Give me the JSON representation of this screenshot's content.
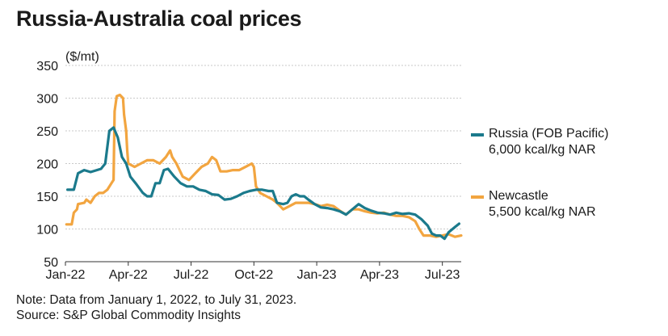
{
  "title": "Russia-Australia coal prices",
  "note": "Note: Data from January 1, 2022, to July 31, 2023.",
  "source": "Source: S&P Global Commodity Insights",
  "colors": {
    "russia": "#1b7a8c",
    "newcastle": "#f2a540",
    "grid": "#c9c9c9",
    "axis": "#333333"
  },
  "chart_data": {
    "type": "line",
    "title": "Russia-Australia coal prices",
    "ylabel": "($/mt)",
    "ylim": [
      50,
      350
    ],
    "yticks": [
      50,
      100,
      150,
      200,
      250,
      300,
      350
    ],
    "xlim": [
      0,
      18.9
    ],
    "xticks": [
      {
        "label": "Jan-22",
        "pos": 0
      },
      {
        "label": "Apr-22",
        "pos": 3
      },
      {
        "label": "Jul-22",
        "pos": 6
      },
      {
        "label": "Oct-22",
        "pos": 9
      },
      {
        "label": "Jan-23",
        "pos": 12
      },
      {
        "label": "Apr-23",
        "pos": 15
      },
      {
        "label": "Jul-23",
        "pos": 18
      }
    ],
    "series": [
      {
        "name": "Russia (FOB Pacific)",
        "name_line2": "6,000 kcal/kg NAR",
        "color": "#1b7a8c",
        "points": [
          [
            0.1,
            160
          ],
          [
            0.4,
            160
          ],
          [
            0.6,
            185
          ],
          [
            0.9,
            190
          ],
          [
            1.2,
            187
          ],
          [
            1.5,
            190
          ],
          [
            1.7,
            192
          ],
          [
            1.9,
            200
          ],
          [
            2.1,
            250
          ],
          [
            2.3,
            255
          ],
          [
            2.5,
            240
          ],
          [
            2.7,
            210
          ],
          [
            2.9,
            200
          ],
          [
            3.1,
            180
          ],
          [
            3.4,
            168
          ],
          [
            3.7,
            155
          ],
          [
            3.9,
            150
          ],
          [
            4.1,
            150
          ],
          [
            4.3,
            170
          ],
          [
            4.5,
            170
          ],
          [
            4.7,
            190
          ],
          [
            4.9,
            192
          ],
          [
            5.2,
            180
          ],
          [
            5.5,
            170
          ],
          [
            5.8,
            165
          ],
          [
            6.1,
            165
          ],
          [
            6.4,
            160
          ],
          [
            6.7,
            158
          ],
          [
            7.0,
            153
          ],
          [
            7.3,
            152
          ],
          [
            7.6,
            145
          ],
          [
            7.9,
            146
          ],
          [
            8.2,
            150
          ],
          [
            8.5,
            155
          ],
          [
            8.8,
            158
          ],
          [
            9.1,
            160
          ],
          [
            9.4,
            160
          ],
          [
            9.7,
            158
          ],
          [
            9.9,
            158
          ],
          [
            10.1,
            140
          ],
          [
            10.4,
            138
          ],
          [
            10.6,
            140
          ],
          [
            10.8,
            150
          ],
          [
            11.0,
            153
          ],
          [
            11.2,
            150
          ],
          [
            11.4,
            150
          ],
          [
            11.6,
            145
          ],
          [
            11.9,
            138
          ],
          [
            12.2,
            133
          ],
          [
            12.5,
            132
          ],
          [
            12.8,
            130
          ],
          [
            13.1,
            127
          ],
          [
            13.4,
            122
          ],
          [
            13.7,
            130
          ],
          [
            14.0,
            138
          ],
          [
            14.3,
            132
          ],
          [
            14.6,
            128
          ],
          [
            14.9,
            125
          ],
          [
            15.2,
            124
          ],
          [
            15.5,
            122
          ],
          [
            15.8,
            125
          ],
          [
            16.1,
            123
          ],
          [
            16.4,
            124
          ],
          [
            16.7,
            122
          ],
          [
            17.0,
            115
          ],
          [
            17.3,
            105
          ],
          [
            17.5,
            93
          ],
          [
            17.7,
            90
          ],
          [
            17.9,
            90
          ],
          [
            18.1,
            85
          ],
          [
            18.3,
            95
          ],
          [
            18.6,
            103
          ],
          [
            18.8,
            108
          ]
        ]
      },
      {
        "name": "Newcastle",
        "name_line2": "5,500 kcal/kg NAR",
        "color": "#f2a540",
        "points": [
          [
            0.05,
            107
          ],
          [
            0.3,
            107
          ],
          [
            0.4,
            125
          ],
          [
            0.55,
            130
          ],
          [
            0.6,
            138
          ],
          [
            0.9,
            140
          ],
          [
            1.0,
            145
          ],
          [
            1.2,
            140
          ],
          [
            1.4,
            150
          ],
          [
            1.6,
            155
          ],
          [
            1.8,
            155
          ],
          [
            2.0,
            160
          ],
          [
            2.2,
            170
          ],
          [
            2.3,
            175
          ],
          [
            2.35,
            280
          ],
          [
            2.45,
            303
          ],
          [
            2.6,
            305
          ],
          [
            2.75,
            300
          ],
          [
            2.8,
            275
          ],
          [
            2.9,
            250
          ],
          [
            2.95,
            220
          ],
          [
            3.0,
            200
          ],
          [
            3.3,
            195
          ],
          [
            3.6,
            200
          ],
          [
            3.9,
            205
          ],
          [
            4.2,
            205
          ],
          [
            4.5,
            200
          ],
          [
            4.8,
            210
          ],
          [
            5.0,
            220
          ],
          [
            5.1,
            210
          ],
          [
            5.3,
            200
          ],
          [
            5.6,
            180
          ],
          [
            5.9,
            175
          ],
          [
            6.2,
            185
          ],
          [
            6.5,
            195
          ],
          [
            6.8,
            200
          ],
          [
            7.0,
            210
          ],
          [
            7.2,
            205
          ],
          [
            7.4,
            188
          ],
          [
            7.7,
            188
          ],
          [
            8.0,
            190
          ],
          [
            8.3,
            190
          ],
          [
            8.6,
            195
          ],
          [
            8.9,
            200
          ],
          [
            9.0,
            195
          ],
          [
            9.1,
            165
          ],
          [
            9.3,
            155
          ],
          [
            9.6,
            150
          ],
          [
            9.9,
            145
          ],
          [
            10.1,
            140
          ],
          [
            10.4,
            130
          ],
          [
            10.7,
            135
          ],
          [
            11.0,
            140
          ],
          [
            11.3,
            140
          ],
          [
            11.6,
            140
          ],
          [
            11.9,
            138
          ],
          [
            12.2,
            135
          ],
          [
            12.5,
            137
          ],
          [
            12.8,
            135
          ],
          [
            13.1,
            128
          ],
          [
            13.4,
            122
          ],
          [
            13.7,
            130
          ],
          [
            14.0,
            130
          ],
          [
            14.3,
            127
          ],
          [
            14.6,
            125
          ],
          [
            14.9,
            124
          ],
          [
            15.2,
            125
          ],
          [
            15.5,
            122
          ],
          [
            15.8,
            120
          ],
          [
            16.1,
            120
          ],
          [
            16.4,
            118
          ],
          [
            16.7,
            112
          ],
          [
            16.9,
            100
          ],
          [
            17.1,
            90
          ],
          [
            17.4,
            90
          ],
          [
            17.7,
            88
          ],
          [
            18.0,
            90
          ],
          [
            18.3,
            92
          ],
          [
            18.6,
            88
          ],
          [
            18.9,
            90
          ]
        ]
      }
    ]
  }
}
